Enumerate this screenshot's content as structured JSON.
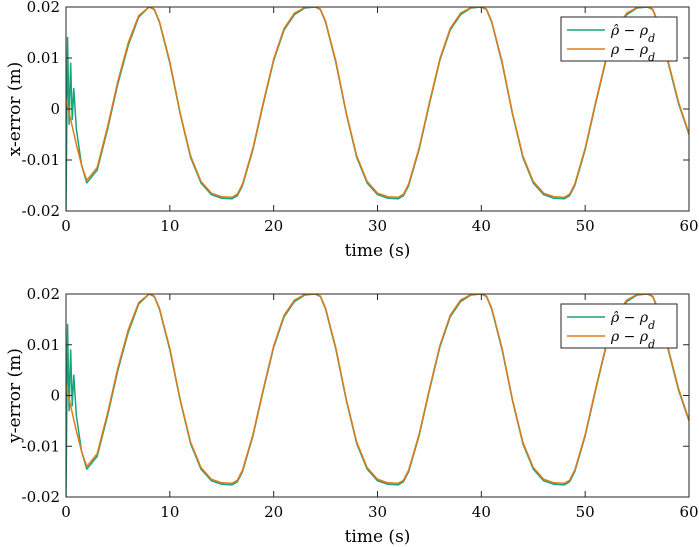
{
  "chart_data": [
    {
      "type": "line",
      "title": "",
      "xlabel": "time (s)",
      "ylabel": "x-error (m)",
      "xlim": [
        0,
        60
      ],
      "ylim": [
        -0.02,
        0.02
      ],
      "xticks": [
        "0",
        "10",
        "20",
        "30",
        "40",
        "50",
        "60"
      ],
      "yticks": [
        "-0.02",
        "-0.01",
        "0",
        "0.01",
        "0.02"
      ],
      "grid": false,
      "legend_position": "top-right",
      "series": [
        {
          "name": "ρ̂ − ρ_d",
          "color": "#1aa37a",
          "x": [
            0,
            0.15,
            0.3,
            0.45,
            0.6,
            0.75,
            1.0,
            1.5,
            2,
            3,
            4,
            5,
            6,
            7,
            8,
            8.5,
            9,
            10,
            11,
            12,
            13,
            14,
            15,
            16,
            16.5,
            17,
            18,
            19,
            20,
            21,
            22,
            23,
            24,
            24.5,
            25,
            26,
            27,
            28,
            29,
            30,
            31,
            32,
            32.5,
            33,
            34,
            35,
            36,
            37,
            38,
            39,
            40,
            40.5,
            41,
            42,
            43,
            44,
            45,
            46,
            47,
            48,
            48.5,
            49,
            50,
            51,
            52,
            53,
            54,
            55,
            56,
            56.5,
            57,
            58,
            59,
            60
          ],
          "values": [
            -0.02,
            0.014,
            -0.003,
            0.009,
            -0.002,
            0.004,
            -0.004,
            -0.011,
            -0.0145,
            -0.012,
            -0.004,
            0.005,
            0.0125,
            0.018,
            0.02,
            0.0195,
            0.017,
            0.009,
            -0.001,
            -0.0095,
            -0.0145,
            -0.0168,
            -0.0175,
            -0.0176,
            -0.017,
            -0.015,
            -0.008,
            0.001,
            0.0095,
            0.0155,
            0.0185,
            0.0198,
            0.02,
            0.0195,
            0.017,
            0.009,
            -0.001,
            -0.0095,
            -0.0145,
            -0.0168,
            -0.0175,
            -0.0176,
            -0.017,
            -0.015,
            -0.008,
            0.001,
            0.0095,
            0.0155,
            0.0185,
            0.0198,
            0.02,
            0.0195,
            0.017,
            0.009,
            -0.001,
            -0.0095,
            -0.0145,
            -0.0168,
            -0.0175,
            -0.0176,
            -0.017,
            -0.015,
            -0.008,
            0.001,
            0.0095,
            0.0155,
            0.0185,
            0.0198,
            0.02,
            0.0195,
            0.017,
            0.009,
            0.001,
            -0.005
          ]
        },
        {
          "name": "ρ − ρ_d",
          "color": "#e07b1a",
          "x": [
            0,
            0.5,
            1.0,
            1.5,
            2,
            3,
            4,
            5,
            6,
            7,
            8,
            8.5,
            9,
            10,
            11,
            12,
            13,
            14,
            15,
            16,
            16.5,
            17,
            18,
            19,
            20,
            21,
            22,
            23,
            24,
            24.5,
            25,
            26,
            27,
            28,
            29,
            30,
            31,
            32,
            32.5,
            33,
            34,
            35,
            36,
            37,
            38,
            39,
            40,
            40.5,
            41,
            42,
            43,
            44,
            45,
            46,
            47,
            48,
            48.5,
            49,
            50,
            51,
            52,
            53,
            54,
            55,
            56,
            56.5,
            57,
            58,
            59,
            60
          ],
          "values": [
            0.002,
            -0.0025,
            -0.007,
            -0.011,
            -0.014,
            -0.0115,
            -0.0035,
            0.0055,
            0.013,
            0.0183,
            0.02,
            0.0196,
            0.0172,
            0.0093,
            -0.0008,
            -0.0092,
            -0.0142,
            -0.0165,
            -0.0172,
            -0.0173,
            -0.0167,
            -0.0147,
            -0.0077,
            0.0013,
            0.0098,
            0.0158,
            0.0188,
            0.0199,
            0.02,
            0.0196,
            0.0172,
            0.0093,
            -0.0008,
            -0.0092,
            -0.0142,
            -0.0165,
            -0.0172,
            -0.0173,
            -0.0167,
            -0.0147,
            -0.0077,
            0.0013,
            0.0098,
            0.0158,
            0.0188,
            0.0199,
            0.02,
            0.0196,
            0.0172,
            0.0093,
            -0.0008,
            -0.0092,
            -0.0142,
            -0.0165,
            -0.0172,
            -0.0173,
            -0.0167,
            -0.0147,
            -0.0077,
            0.0013,
            0.0098,
            0.0158,
            0.0188,
            0.0199,
            0.02,
            0.0196,
            0.0172,
            0.0093,
            0.0013,
            -0.0048
          ]
        }
      ]
    },
    {
      "type": "line",
      "title": "",
      "xlabel": "time (s)",
      "ylabel": "y-error (m)",
      "xlim": [
        0,
        60
      ],
      "ylim": [
        -0.02,
        0.02
      ],
      "xticks": [
        "0",
        "10",
        "20",
        "30",
        "40",
        "50",
        "60"
      ],
      "yticks": [
        "-0.02",
        "-0.01",
        "0",
        "0.01",
        "0.02"
      ],
      "grid": false,
      "legend_position": "top-right",
      "series": [
        {
          "name": "ρ̂ − ρ_d",
          "color": "#1aa37a",
          "x": [
            0,
            0.15,
            0.3,
            0.45,
            0.6,
            0.75,
            1.0,
            1.5,
            2,
            3,
            4,
            5,
            6,
            7,
            8,
            8.5,
            9,
            10,
            11,
            12,
            13,
            14,
            15,
            16,
            16.5,
            17,
            18,
            19,
            20,
            21,
            22,
            23,
            24,
            24.5,
            25,
            26,
            27,
            28,
            29,
            30,
            31,
            32,
            32.5,
            33,
            34,
            35,
            36,
            37,
            38,
            39,
            40,
            40.5,
            41,
            42,
            43,
            44,
            45,
            46,
            47,
            48,
            48.5,
            49,
            50,
            51,
            52,
            53,
            54,
            55,
            56,
            56.5,
            57,
            58,
            59,
            60
          ],
          "values": [
            -0.02,
            0.014,
            -0.003,
            0.009,
            -0.002,
            0.004,
            -0.004,
            -0.011,
            -0.0145,
            -0.012,
            -0.004,
            0.005,
            0.0125,
            0.018,
            0.02,
            0.0195,
            0.017,
            0.009,
            -0.001,
            -0.0095,
            -0.0145,
            -0.0168,
            -0.0175,
            -0.0176,
            -0.017,
            -0.015,
            -0.008,
            0.001,
            0.0095,
            0.0155,
            0.0185,
            0.0198,
            0.02,
            0.0195,
            0.017,
            0.009,
            -0.001,
            -0.0095,
            -0.0145,
            -0.0168,
            -0.0175,
            -0.0176,
            -0.017,
            -0.015,
            -0.008,
            0.001,
            0.0095,
            0.0155,
            0.0185,
            0.0198,
            0.02,
            0.0195,
            0.017,
            0.009,
            -0.001,
            -0.0095,
            -0.0145,
            -0.0168,
            -0.0175,
            -0.0176,
            -0.017,
            -0.015,
            -0.008,
            0.001,
            0.0095,
            0.0155,
            0.0185,
            0.0198,
            0.02,
            0.0195,
            0.017,
            0.009,
            0.001,
            -0.005
          ]
        },
        {
          "name": "ρ − ρ_d",
          "color": "#e07b1a",
          "x": [
            0,
            0.5,
            1.0,
            1.5,
            2,
            3,
            4,
            5,
            6,
            7,
            8,
            8.5,
            9,
            10,
            11,
            12,
            13,
            14,
            15,
            16,
            16.5,
            17,
            18,
            19,
            20,
            21,
            22,
            23,
            24,
            24.5,
            25,
            26,
            27,
            28,
            29,
            30,
            31,
            32,
            32.5,
            33,
            34,
            35,
            36,
            37,
            38,
            39,
            40,
            40.5,
            41,
            42,
            43,
            44,
            45,
            46,
            47,
            48,
            48.5,
            49,
            50,
            51,
            52,
            53,
            54,
            55,
            56,
            56.5,
            57,
            58,
            59,
            60
          ],
          "values": [
            0.002,
            -0.0025,
            -0.007,
            -0.011,
            -0.014,
            -0.0115,
            -0.0035,
            0.0055,
            0.013,
            0.0183,
            0.02,
            0.0196,
            0.0172,
            0.0093,
            -0.0008,
            -0.0092,
            -0.0142,
            -0.0165,
            -0.0172,
            -0.0173,
            -0.0167,
            -0.0147,
            -0.0077,
            0.0013,
            0.0098,
            0.0158,
            0.0188,
            0.0199,
            0.02,
            0.0196,
            0.0172,
            0.0093,
            -0.0008,
            -0.0092,
            -0.0142,
            -0.0165,
            -0.0172,
            -0.0173,
            -0.0167,
            -0.0147,
            -0.0077,
            0.0013,
            0.0098,
            0.0158,
            0.0188,
            0.0199,
            0.02,
            0.0196,
            0.0172,
            0.0093,
            -0.0008,
            -0.0092,
            -0.0142,
            -0.0165,
            -0.0172,
            -0.0173,
            -0.0167,
            -0.0147,
            -0.0077,
            0.0013,
            0.0098,
            0.0158,
            0.0188,
            0.0199,
            0.02,
            0.0196,
            0.0172,
            0.0093,
            0.0013,
            -0.0048
          ]
        }
      ]
    }
  ]
}
